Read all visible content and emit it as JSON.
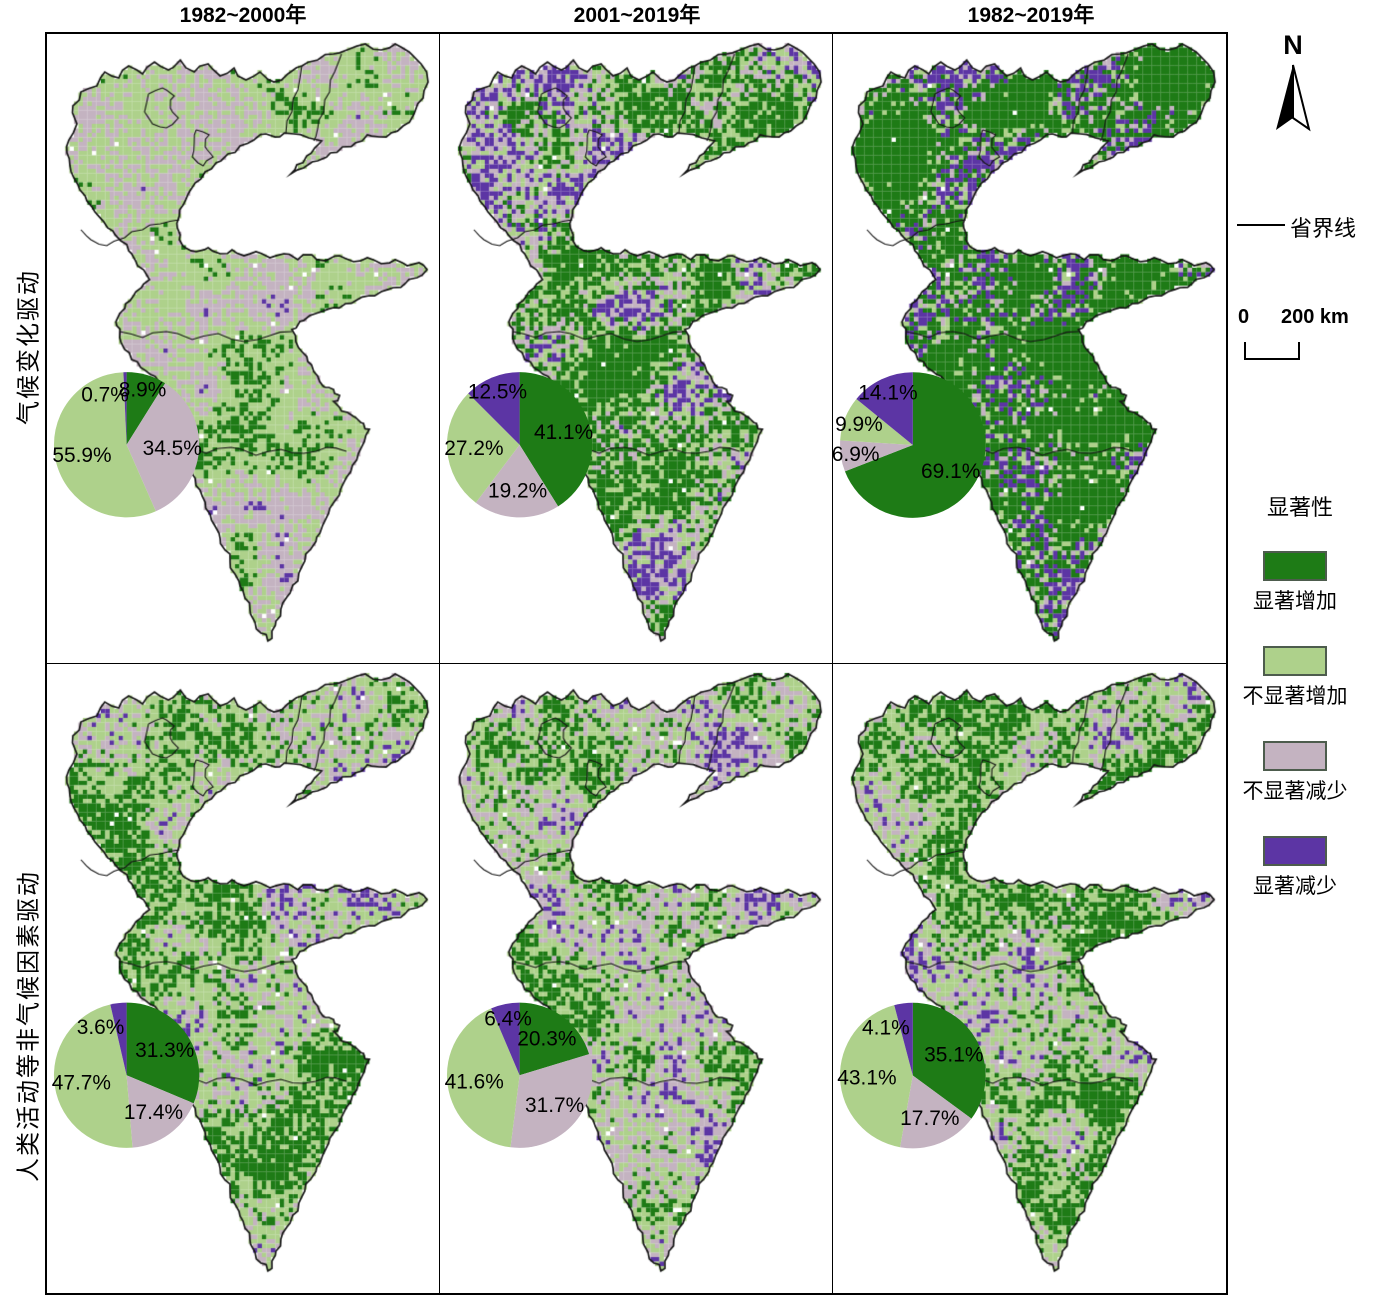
{
  "headers": [
    "1982~2000年",
    "2001~2019年",
    "1982~2019年"
  ],
  "row_labels": [
    "气候变化驱动",
    "人类活动等非气候因素驱动"
  ],
  "legend": {
    "north": "N",
    "boundary_line": "省界线",
    "scale_start": "0",
    "scale_end": "200 km",
    "significance_title": "显著性",
    "classes": [
      {
        "label": "显著增加",
        "color": "#1e7b16"
      },
      {
        "label": "不显著增加",
        "color": "#aed18b"
      },
      {
        "label": "不显著减少",
        "color": "#c4b3c1"
      },
      {
        "label": "显著减少",
        "color": "#5c35a4"
      }
    ]
  },
  "chart_data": [
    {
      "type": "pie",
      "row": "气候变化驱动",
      "period": "1982~2000年",
      "categories": [
        "显著增加",
        "不显著增加",
        "不显著减少",
        "显著减少"
      ],
      "values": [
        8.9,
        55.9,
        34.5,
        0.7
      ]
    },
    {
      "type": "pie",
      "row": "气候变化驱动",
      "period": "2001~2019年",
      "categories": [
        "显著增加",
        "不显著增加",
        "不显著减少",
        "显著减少"
      ],
      "values": [
        41.1,
        27.2,
        19.2,
        12.5
      ]
    },
    {
      "type": "pie",
      "row": "气候变化驱动",
      "period": "1982~2019年",
      "categories": [
        "显著增加",
        "不显著增加",
        "不显著减少",
        "显著减少"
      ],
      "values": [
        69.1,
        9.9,
        6.9,
        14.1
      ]
    },
    {
      "type": "pie",
      "row": "人类活动等非气候因素驱动",
      "period": "1982~2000年",
      "categories": [
        "显著增加",
        "不显著增加",
        "不显著减少",
        "显著减少"
      ],
      "values": [
        31.3,
        47.7,
        17.4,
        3.6
      ]
    },
    {
      "type": "pie",
      "row": "人类活动等非气候因素驱动",
      "period": "2001~2019年",
      "categories": [
        "显著增加",
        "不显著增加",
        "不显著减少",
        "显著减少"
      ],
      "values": [
        20.3,
        41.6,
        31.7,
        6.4
      ]
    },
    {
      "type": "pie",
      "row": "人类活动等非气候因素驱动",
      "period": "1982~2019年",
      "categories": [
        "显著增加",
        "不显著增加",
        "不显著减少",
        "显著减少"
      ],
      "values": [
        35.1,
        43.1,
        17.7,
        4.1
      ]
    }
  ]
}
